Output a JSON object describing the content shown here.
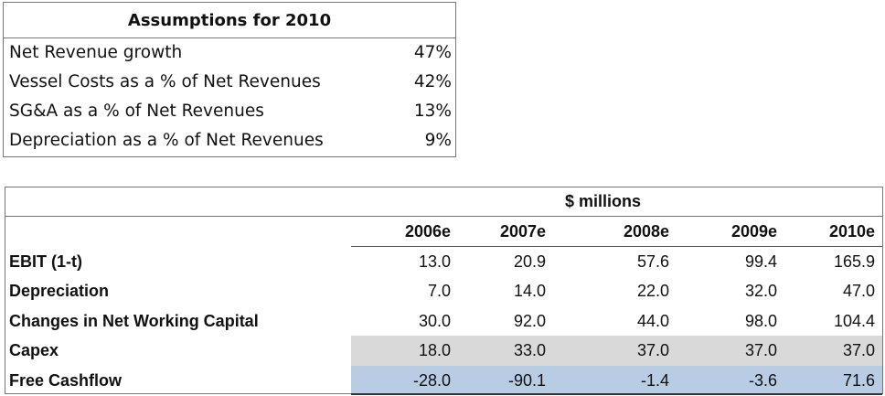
{
  "assumptions": {
    "title": "Assumptions for 2010",
    "rows": [
      {
        "label": "Net Revenue growth",
        "value": "47%"
      },
      {
        "label": "Vessel Costs as a % of Net Revenues",
        "value": "42%"
      },
      {
        "label": "SG&A as a % of Net Revenues",
        "value": "13%"
      },
      {
        "label": "Depreciation as a % of Net Revenues",
        "value": "9%"
      }
    ]
  },
  "cashflow": {
    "unit": "$ millions",
    "years": [
      "2006e",
      "2007e",
      "2008e",
      "2009e",
      "2010e"
    ],
    "rows": [
      {
        "label": "EBIT (1-t)",
        "values": [
          "13.0",
          "20.9",
          "57.6",
          "99.4",
          "165.9"
        ]
      },
      {
        "label": "Depreciation",
        "values": [
          "7.0",
          "14.0",
          "22.0",
          "32.0",
          "47.0"
        ]
      },
      {
        "label": "Changes in Net Working Capital",
        "values": [
          "30.0",
          "92.0",
          "44.0",
          "98.0",
          "104.4"
        ]
      },
      {
        "label": "Capex",
        "values": [
          "18.0",
          "33.0",
          "37.0",
          "37.0",
          "37.0"
        ],
        "fill": "#d9d9d9"
      },
      {
        "label": "Free Cashflow",
        "values": [
          "-28.0",
          "-90.1",
          "-1.4",
          "-3.6",
          "71.6"
        ],
        "fill": "#b8cce4"
      }
    ]
  }
}
